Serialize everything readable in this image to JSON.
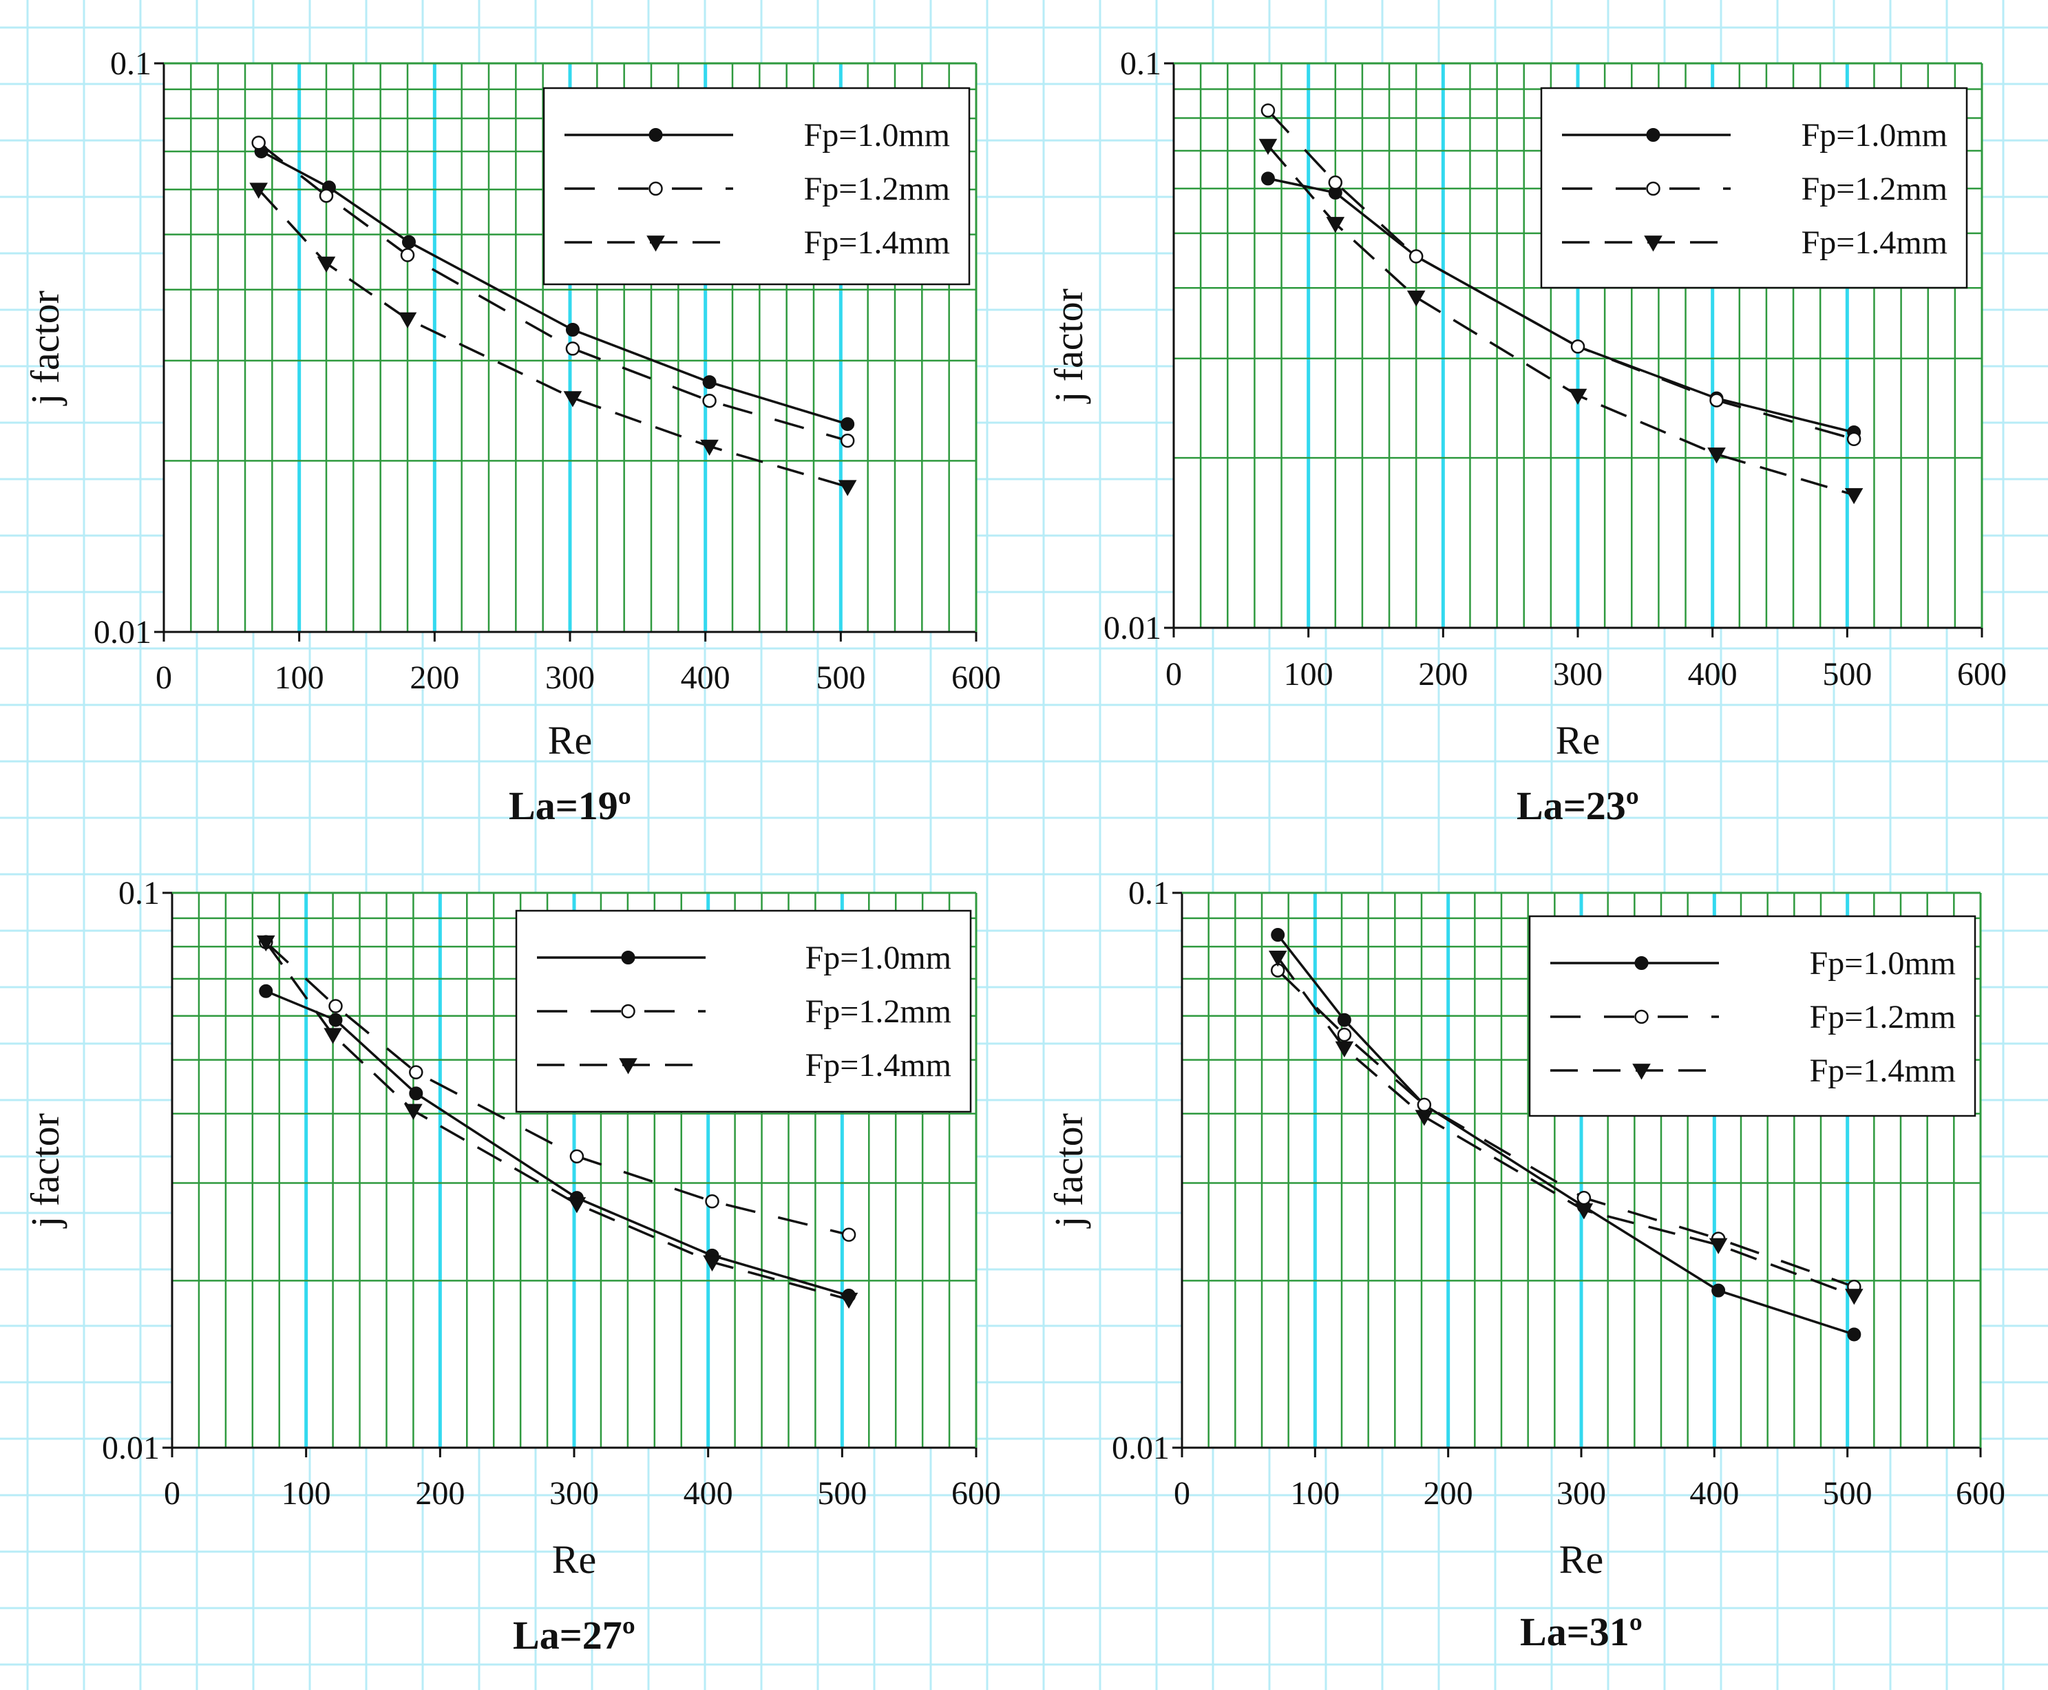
{
  "figure": {
    "panels": [
      {
        "id": "la19",
        "subtitle": "La=19º"
      },
      {
        "id": "la23",
        "subtitle": "La=23º"
      },
      {
        "id": "la27",
        "subtitle": "La=27º"
      },
      {
        "id": "la31",
        "subtitle": "La=31º"
      }
    ]
  },
  "colors": {
    "background": "#ffffff",
    "outer_grid": "#b8ecf7",
    "plot_bg": "#ffffff",
    "minor_grid": "#2f9a3f",
    "major_grid": "#33d9ef",
    "series_line": "#111111",
    "axis": "#111111"
  },
  "chart_data": [
    {
      "type": "line",
      "title": "La=19º",
      "xlabel": "Re",
      "ylabel": "j factor",
      "xlim": [
        0,
        600
      ],
      "ylim": [
        0.01,
        0.1
      ],
      "yscale": "log",
      "x_ticks": [
        0,
        100,
        200,
        300,
        400,
        500,
        600
      ],
      "x_tick_labels": [
        "0",
        "100",
        "200",
        "300",
        "400",
        "500",
        "600"
      ],
      "y_tick_labels": [
        "0.01",
        "0.1"
      ],
      "legend_position": "top-right",
      "series": [
        {
          "name": "Fp=1.0mm",
          "style": "solid",
          "marker": "filled-circle",
          "x": [
            72,
            122,
            181,
            302,
            403,
            505
          ],
          "y": [
            0.07,
            0.0605,
            0.0485,
            0.034,
            0.0275,
            0.0232
          ]
        },
        {
          "name": "Fp=1.2mm",
          "style": "long-dash",
          "marker": "open-circle",
          "x": [
            70,
            120,
            180,
            302,
            403,
            505
          ],
          "y": [
            0.0725,
            0.0585,
            0.046,
            0.0315,
            0.0255,
            0.0217
          ]
        },
        {
          "name": "Fp=1.4mm",
          "style": "dash",
          "marker": "filled-triangle-down",
          "x": [
            70,
            120,
            180,
            302,
            403,
            505
          ],
          "y": [
            0.06,
            0.0445,
            0.0355,
            0.0258,
            0.0212,
            0.018
          ]
        }
      ]
    },
    {
      "type": "line",
      "title": "La=23º",
      "xlabel": "Re",
      "ylabel": "j factor",
      "xlim": [
        0,
        600
      ],
      "ylim": [
        0.01,
        0.1
      ],
      "yscale": "log",
      "x_ticks": [
        0,
        100,
        200,
        300,
        400,
        500,
        600
      ],
      "x_tick_labels": [
        "0",
        "100",
        "200",
        "300",
        "400",
        "500",
        "600"
      ],
      "y_tick_labels": [
        "0.01",
        "0.1"
      ],
      "legend_position": "top-right",
      "series": [
        {
          "name": "Fp=1.0mm",
          "style": "solid",
          "marker": "filled-circle",
          "x": [
            70,
            120,
            180,
            300,
            403,
            505
          ],
          "y": [
            0.0625,
            0.059,
            0.0455,
            0.0315,
            0.0255,
            0.0222
          ]
        },
        {
          "name": "Fp=1.2mm",
          "style": "long-dash",
          "marker": "open-circle",
          "x": [
            70,
            120,
            180,
            300,
            403,
            505
          ],
          "y": [
            0.0825,
            0.0615,
            0.0455,
            0.0315,
            0.0253,
            0.0216
          ]
        },
        {
          "name": "Fp=1.4mm",
          "style": "dash",
          "marker": "filled-triangle-down",
          "x": [
            70,
            120,
            180,
            300,
            403,
            505
          ],
          "y": [
            0.0715,
            0.052,
            0.0385,
            0.0258,
            0.0203,
            0.0172
          ]
        }
      ]
    },
    {
      "type": "line",
      "title": "La=27º",
      "xlabel": "Re",
      "ylabel": "j factor",
      "xlim": [
        0,
        600
      ],
      "ylim": [
        0.01,
        0.1
      ],
      "yscale": "log",
      "x_ticks": [
        0,
        100,
        200,
        300,
        400,
        500,
        600
      ],
      "x_tick_labels": [
        "0",
        "100",
        "200",
        "300",
        "400",
        "500",
        "600"
      ],
      "y_tick_labels": [
        "0.01",
        "0.1"
      ],
      "legend_position": "top-right",
      "series": [
        {
          "name": "Fp=1.0mm",
          "style": "solid",
          "marker": "filled-circle",
          "x": [
            70,
            122,
            182,
            302,
            403,
            505
          ],
          "y": [
            0.0665,
            0.059,
            0.0435,
            0.0282,
            0.0222,
            0.0188
          ]
        },
        {
          "name": "Fp=1.2mm",
          "style": "long-dash",
          "marker": "open-circle",
          "x": [
            70,
            122,
            182,
            302,
            403,
            505
          ],
          "y": [
            0.0815,
            0.0625,
            0.0475,
            0.0335,
            0.0278,
            0.0242
          ]
        },
        {
          "name": "Fp=1.4mm",
          "style": "dash",
          "marker": "filled-triangle-down",
          "x": [
            70,
            120,
            180,
            302,
            403,
            505
          ],
          "y": [
            0.0815,
            0.0555,
            0.0405,
            0.0275,
            0.0216,
            0.0185
          ]
        }
      ]
    },
    {
      "type": "line",
      "title": "La=31º",
      "xlabel": "Re",
      "ylabel": "j factor",
      "xlim": [
        0,
        600
      ],
      "ylim": [
        0.01,
        0.1
      ],
      "yscale": "log",
      "x_ticks": [
        0,
        100,
        200,
        300,
        400,
        500,
        600
      ],
      "x_tick_labels": [
        "0",
        "100",
        "200",
        "300",
        "400",
        "500",
        "600"
      ],
      "y_tick_labels": [
        "0.01",
        "0.1"
      ],
      "legend_position": "top-right",
      "series": [
        {
          "name": "Fp=1.0mm",
          "style": "solid",
          "marker": "filled-circle",
          "x": [
            72,
            122,
            182,
            302,
            403,
            505
          ],
          "y": [
            0.084,
            0.059,
            0.0415,
            0.0272,
            0.0192,
            0.016
          ]
        },
        {
          "name": "Fp=1.2mm",
          "style": "long-dash",
          "marker": "open-circle",
          "x": [
            72,
            122,
            182,
            302,
            403,
            505
          ],
          "y": [
            0.0725,
            0.0555,
            0.0415,
            0.0282,
            0.0238,
            0.0195
          ]
        },
        {
          "name": "Fp=1.4mm",
          "style": "dash",
          "marker": "filled-triangle-down",
          "x": [
            72,
            122,
            182,
            302,
            403,
            505
          ],
          "y": [
            0.0765,
            0.0525,
            0.0395,
            0.0268,
            0.0232,
            0.0188
          ]
        }
      ]
    }
  ]
}
